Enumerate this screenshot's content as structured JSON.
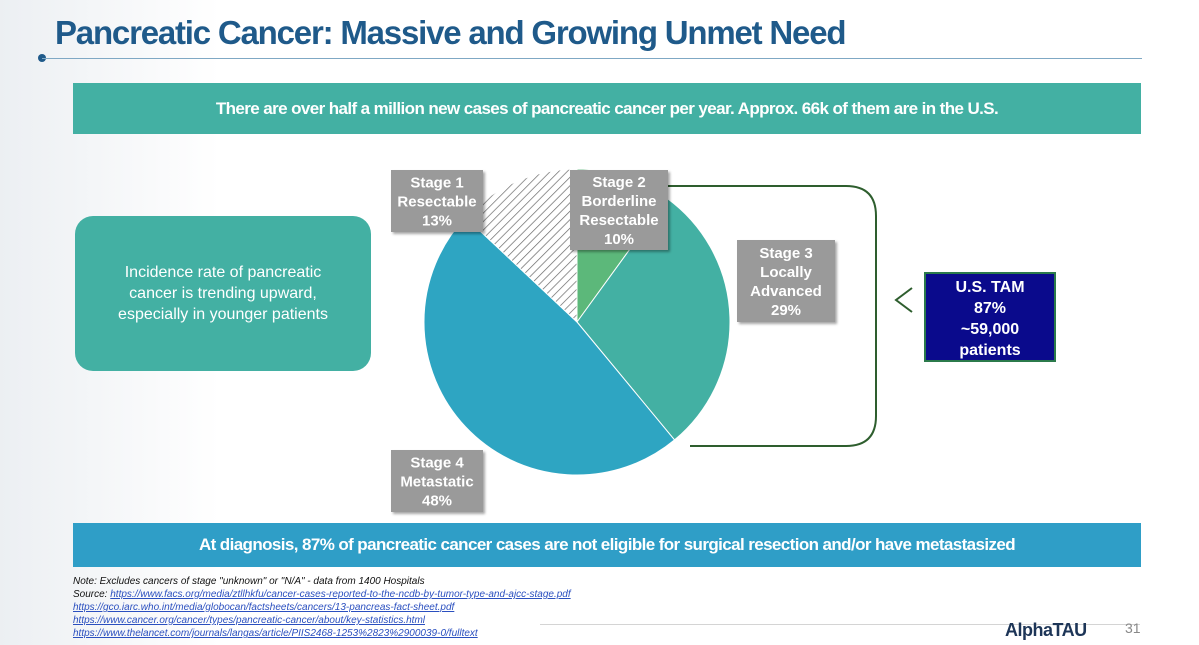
{
  "slide": {
    "title": "Pancreatic Cancer: Massive and Growing Unmet Need",
    "top_banner": "There are over half a million new cases of pancreatic cancer per year. Approx. 66k of them are in the U.S.",
    "incidence_text": "Incidence rate of pancreatic cancer is trending upward, especially in younger patients",
    "bottom_banner": "At diagnosis, 87% of pancreatic cancer cases are not eligible for surgical resection and/or have metastasized",
    "tam": {
      "line1": "U.S. TAM",
      "line2": "87%",
      "line3": "~59,000",
      "line4": "patients"
    },
    "notes": {
      "note": "Note: Excludes cancers of stage \"unknown\" or \"N/A\" -  data from 1400 Hospitals",
      "source_label": "Source:",
      "links": [
        "https://www.facs.org/media/ztllhkfu/cancer-cases-reported-to-the-ncdb-by-tumor-type-and-ajcc-stage.pdf",
        "https://gco.iarc.who.int/media/globocan/factsheets/cancers/13-pancreas-fact-sheet.pdf",
        "https://www.cancer.org/cancer/types/pancreatic-cancer/about/key-statistics.html",
        "https://www.thelancet.com/journals/langas/article/PIIS2468-1253%2823%2900039-0/fulltext"
      ]
    },
    "logo": {
      "alpha": "Alpha",
      "tau": "TAU"
    },
    "page_number": "31"
  },
  "chart_data": {
    "type": "pie",
    "start_angle_deg": 0,
    "slices": [
      {
        "label_lines": [
          "Stage 2",
          "Borderline",
          "Resectable",
          "10%"
        ],
        "value": 10,
        "color": "#5cb87a",
        "pattern": "solid"
      },
      {
        "label_lines": [
          "Stage 3",
          "Locally",
          "Advanced",
          "29%"
        ],
        "value": 29,
        "color": "#43b0a3",
        "pattern": "solid"
      },
      {
        "label_lines": [
          "Stage 4",
          "Metastatic",
          "48%"
        ],
        "value": 48,
        "color": "#2ea5c2",
        "pattern": "solid"
      },
      {
        "label_lines": [
          "Stage 1",
          "Resectable",
          "13%"
        ],
        "value": 13,
        "color": "#ffffff",
        "pattern": "hatch"
      }
    ],
    "label_box_color": "#9a9a9a",
    "bracket_color": "#2e5e2e"
  }
}
